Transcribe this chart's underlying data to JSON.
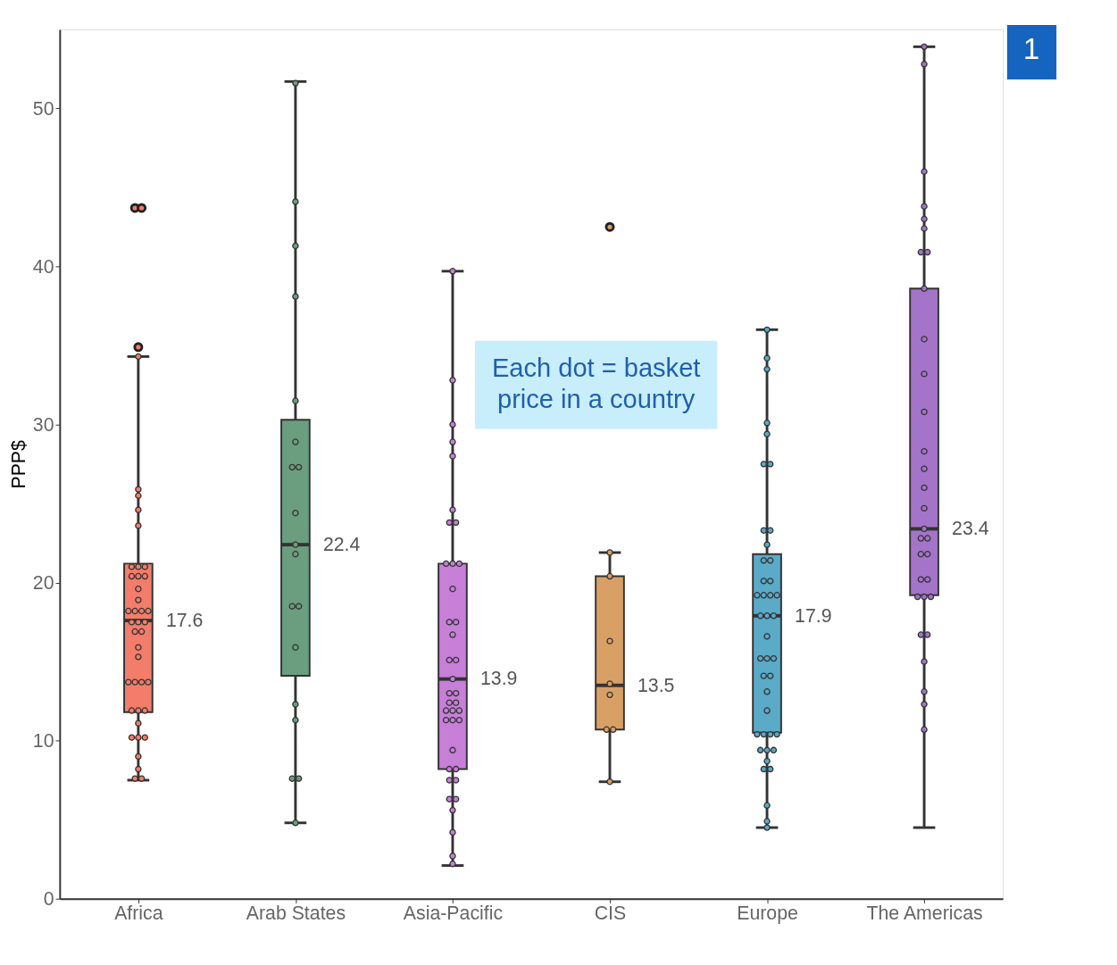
{
  "chart_data": {
    "type": "box",
    "ylabel": "PPP$",
    "categories": [
      "Africa",
      "Arab States",
      "Asia-Pacific",
      "CIS",
      "Europe",
      "The Americas"
    ],
    "colors": [
      "#f47c6a",
      "#6a9e7f",
      "#c77fd8",
      "#d9a066",
      "#5aaac8",
      "#a374c8"
    ],
    "boxes": [
      {
        "low": 7.5,
        "q1": 11.8,
        "median": 17.6,
        "q3": 21.2,
        "high": 34.3,
        "outliers": [
          43.7,
          43.7,
          34.9
        ]
      },
      {
        "low": 4.8,
        "q1": 14.1,
        "median": 22.4,
        "q3": 30.3,
        "high": 51.7
      },
      {
        "low": 2.1,
        "q1": 8.2,
        "median": 13.9,
        "q3": 21.2,
        "high": 39.7
      },
      {
        "low": 7.4,
        "q1": 10.7,
        "median": 13.5,
        "q3": 20.4,
        "high": 21.9,
        "outliers": [
          42.5
        ]
      },
      {
        "low": 4.5,
        "q1": 10.5,
        "median": 17.9,
        "q3": 21.8,
        "high": 36.0
      },
      {
        "low": 4.5,
        "q1": 19.2,
        "median": 23.4,
        "q3": 38.6,
        "high": 53.9
      }
    ],
    "value_labels": [
      "17.6",
      "22.4",
      "13.9",
      "13.5",
      "17.9",
      "23.4"
    ],
    "ylim": [
      0,
      55
    ],
    "yticks": [
      0,
      10,
      20,
      30,
      40,
      50
    ],
    "grid": false,
    "annotations": [
      "Each dot = basket price in a country",
      "1"
    ],
    "series": [
      {
        "type": "scatter",
        "color": "#f47c6a",
        "x": [
          "Africa",
          "Africa",
          "Africa",
          "Africa",
          "Africa",
          "Africa",
          "Africa",
          "Africa",
          "Africa",
          "Africa",
          "Africa",
          "Africa",
          "Africa",
          "Africa",
          "Africa",
          "Africa",
          "Africa",
          "Africa",
          "Africa",
          "Africa",
          "Africa",
          "Africa",
          "Africa",
          "Africa",
          "Africa",
          "Africa",
          "Africa",
          "Africa",
          "Africa",
          "Africa",
          "Africa",
          "Africa",
          "Africa",
          "Africa",
          "Africa",
          "Africa",
          "Africa",
          "Africa",
          "Africa"
        ],
        "values": [
          34.3,
          25.9,
          25.5,
          24.6,
          23.6,
          21.0,
          21.0,
          21.0,
          20.4,
          20.4,
          20.4,
          19.6,
          18.9,
          18.2,
          18.2,
          18.2,
          18.2,
          17.5,
          17.5,
          17.5,
          16.9,
          16.9,
          15.9,
          15.3,
          13.7,
          13.7,
          13.7,
          13.7,
          11.9,
          11.9,
          11.9,
          11.1,
          10.2,
          10.2,
          10.2,
          9.0,
          8.2,
          7.6,
          7.6
        ]
      },
      {
        "type": "scatter",
        "color": "#6a9e7f",
        "x": [
          "Arab States",
          "Arab States",
          "Arab States",
          "Arab States",
          "Arab States",
          "Arab States",
          "Arab States",
          "Arab States",
          "Arab States",
          "Arab States",
          "Arab States",
          "Arab States",
          "Arab States",
          "Arab States",
          "Arab States",
          "Arab States",
          "Arab States",
          "Arab States",
          "Arab States"
        ],
        "values": [
          51.6,
          44.1,
          41.3,
          38.1,
          31.5,
          28.9,
          27.3,
          27.3,
          24.4,
          22.4,
          21.8,
          18.5,
          18.5,
          15.9,
          12.3,
          11.3,
          7.6,
          7.6,
          4.8
        ]
      },
      {
        "type": "scatter",
        "color": "#c77fd8",
        "x": [
          "Asia-Pacific",
          "Asia-Pacific",
          "Asia-Pacific",
          "Asia-Pacific",
          "Asia-Pacific",
          "Asia-Pacific",
          "Asia-Pacific",
          "Asia-Pacific",
          "Asia-Pacific",
          "Asia-Pacific",
          "Asia-Pacific",
          "Asia-Pacific",
          "Asia-Pacific",
          "Asia-Pacific",
          "Asia-Pacific",
          "Asia-Pacific",
          "Asia-Pacific",
          "Asia-Pacific",
          "Asia-Pacific",
          "Asia-Pacific",
          "Asia-Pacific",
          "Asia-Pacific",
          "Asia-Pacific",
          "Asia-Pacific",
          "Asia-Pacific",
          "Asia-Pacific",
          "Asia-Pacific",
          "Asia-Pacific",
          "Asia-Pacific",
          "Asia-Pacific",
          "Asia-Pacific",
          "Asia-Pacific",
          "Asia-Pacific",
          "Asia-Pacific",
          "Asia-Pacific",
          "Asia-Pacific",
          "Asia-Pacific",
          "Asia-Pacific",
          "Asia-Pacific"
        ],
        "values": [
          39.7,
          32.8,
          30.0,
          28.9,
          28.0,
          24.6,
          23.8,
          23.8,
          21.2,
          21.2,
          21.2,
          19.6,
          17.5,
          17.5,
          16.7,
          15.1,
          15.1,
          13.9,
          13.0,
          13.0,
          12.4,
          12.4,
          11.9,
          11.9,
          11.9,
          11.3,
          11.3,
          11.3,
          9.4,
          8.2,
          8.2,
          7.5,
          7.5,
          6.3,
          6.3,
          5.6,
          4.2,
          2.7,
          2.2
        ]
      },
      {
        "type": "scatter",
        "color": "#d9a066",
        "x": [
          "CIS",
          "CIS",
          "CIS",
          "CIS",
          "CIS",
          "CIS",
          "CIS",
          "CIS"
        ],
        "values": [
          21.9,
          20.4,
          16.3,
          13.6,
          12.9,
          10.7,
          10.7,
          7.4
        ]
      },
      {
        "type": "scatter",
        "color": "#5aaac8",
        "x": [
          "Europe",
          "Europe",
          "Europe",
          "Europe",
          "Europe",
          "Europe",
          "Europe",
          "Europe",
          "Europe",
          "Europe",
          "Europe",
          "Europe",
          "Europe",
          "Europe",
          "Europe",
          "Europe",
          "Europe",
          "Europe",
          "Europe",
          "Europe",
          "Europe",
          "Europe",
          "Europe",
          "Europe",
          "Europe",
          "Europe",
          "Europe",
          "Europe",
          "Europe",
          "Europe",
          "Europe",
          "Europe",
          "Europe",
          "Europe",
          "Europe",
          "Europe",
          "Europe",
          "Europe",
          "Europe",
          "Europe",
          "Europe",
          "Europe"
        ],
        "values": [
          36.0,
          34.2,
          33.5,
          30.1,
          29.4,
          27.5,
          27.5,
          23.3,
          23.3,
          22.4,
          21.4,
          21.4,
          20.1,
          20.1,
          19.2,
          19.2,
          19.2,
          19.2,
          17.9,
          17.9,
          17.9,
          16.6,
          15.2,
          15.2,
          15.2,
          14.1,
          14.1,
          13.1,
          11.9,
          10.4,
          10.4,
          10.4,
          10.4,
          9.4,
          9.4,
          9.4,
          8.7,
          8.2,
          8.2,
          5.9,
          4.9,
          4.5
        ]
      },
      {
        "type": "scatter",
        "color": "#a374c8",
        "x": [
          "The Americas",
          "The Americas",
          "The Americas",
          "The Americas",
          "The Americas",
          "The Americas",
          "The Americas",
          "The Americas",
          "The Americas",
          "The Americas",
          "The Americas",
          "The Americas",
          "The Americas",
          "The Americas",
          "The Americas",
          "The Americas",
          "The Americas",
          "The Americas",
          "The Americas",
          "The Americas",
          "The Americas",
          "The Americas",
          "The Americas",
          "The Americas",
          "The Americas",
          "The Americas",
          "The Americas",
          "The Americas",
          "The Americas",
          "The Americas",
          "The Americas",
          "The Americas"
        ],
        "values": [
          53.9,
          52.8,
          46.0,
          43.8,
          43.0,
          42.4,
          40.9,
          40.9,
          38.6,
          35.4,
          33.2,
          30.8,
          28.3,
          27.2,
          26.0,
          24.7,
          23.4,
          22.8,
          22.8,
          21.8,
          21.8,
          20.2,
          20.2,
          19.1,
          19.1,
          19.1,
          16.7,
          16.7,
          15.0,
          13.1,
          12.3,
          10.7
        ]
      }
    ]
  }
}
